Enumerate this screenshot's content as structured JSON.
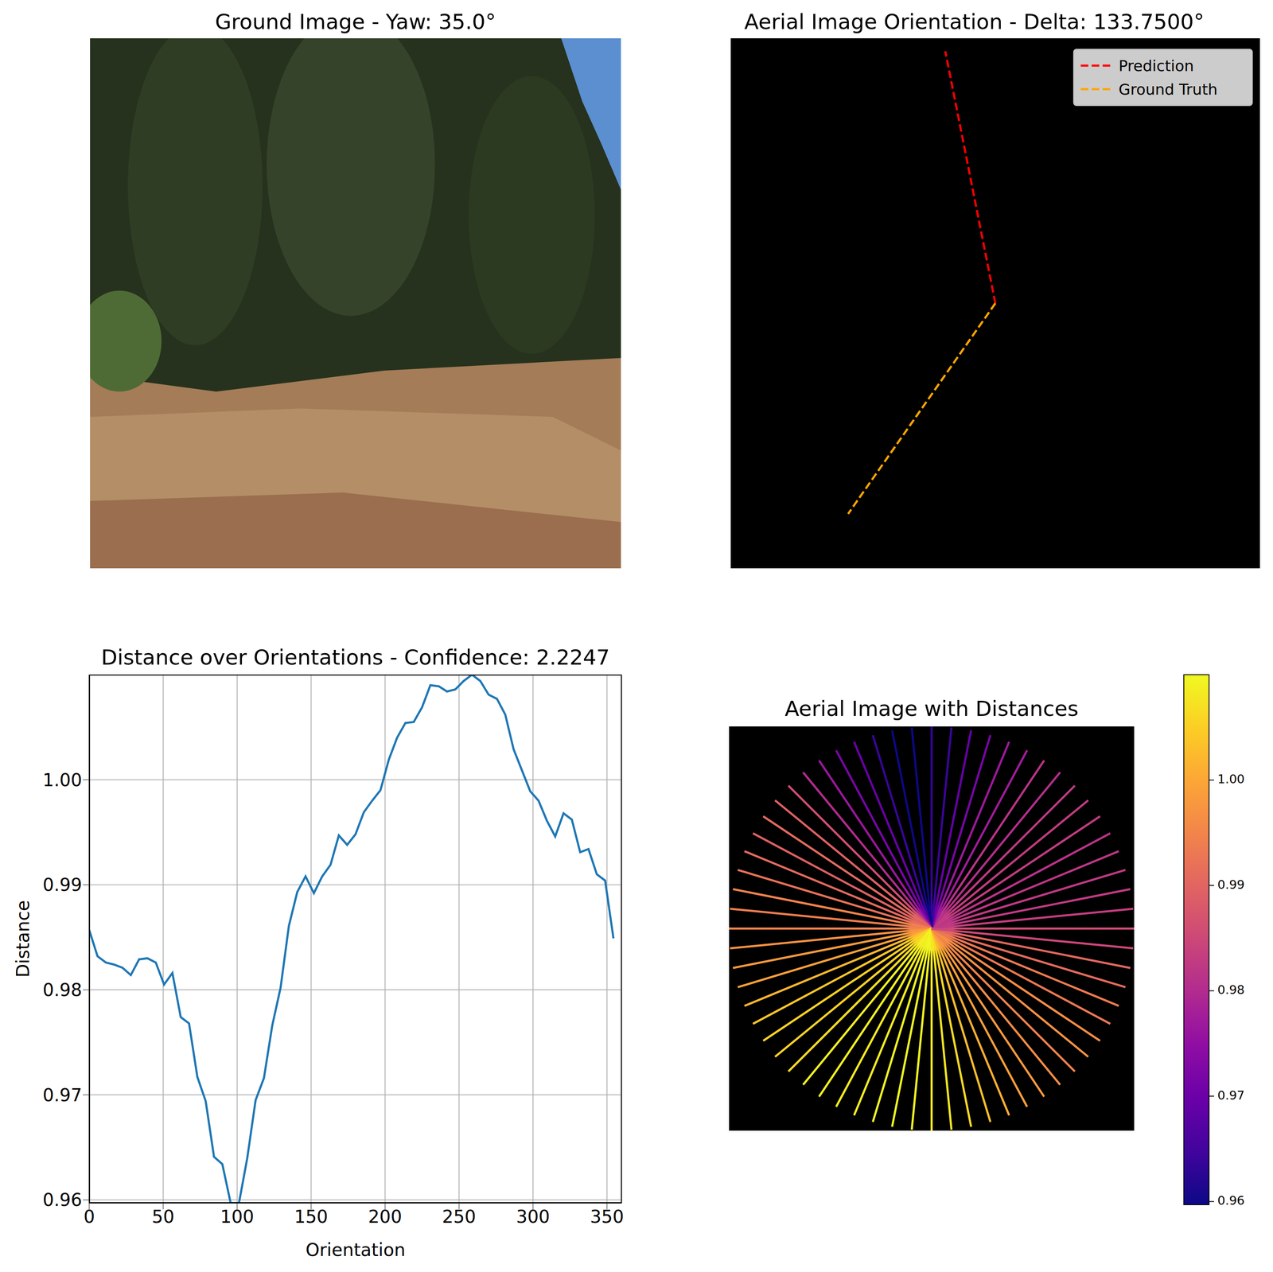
{
  "chart_data": [
    {
      "type": "image",
      "title": "Ground Image - Yaw: 35.0°"
    },
    {
      "type": "orientation",
      "title": "Aerial Image Orientation - Delta: 133.7500°",
      "legend": "upper right",
      "tick_labels": false,
      "series": [
        {
          "name": "Prediction",
          "color": "#ff0000",
          "line_style": "dashed",
          "angle": 101.25
        },
        {
          "name": "Ground Truth",
          "color": "#ffa500",
          "line_style": "dashed",
          "angle": 235
        }
      ]
    },
    {
      "type": "line",
      "title": "Distance over Orientations - Confidence: 2.2247",
      "x_label": "Orientation",
      "y_label": "Distance",
      "color": "#1f77b4",
      "grid": true,
      "x": [
        0,
        5.625,
        11.25,
        16.875,
        22.5,
        28.125,
        33.75,
        39.375,
        45,
        50.625,
        56.25,
        61.875,
        67.5,
        73.125,
        78.75,
        84.375,
        90,
        95.625,
        101.25,
        106.875,
        112.5,
        118.125,
        123.75,
        129.375,
        135,
        140.625,
        146.25,
        151.875,
        157.5,
        163.125,
        168.75,
        174.375,
        180,
        185.625,
        191.25,
        196.875,
        202.5,
        208.125,
        213.75,
        219.375,
        225,
        230.625,
        236.25,
        241.875,
        247.5,
        253.125,
        258.75,
        264.375,
        270,
        275.625,
        281.25,
        286.875,
        292.5,
        298.125,
        303.75,
        309.375,
        315,
        320.625,
        326.25,
        331.875,
        337.5,
        343.125,
        348.75,
        354.375
      ],
      "values": [
        0.9857,
        0.9832,
        0.9826,
        0.9824,
        0.9821,
        0.9814,
        0.9829,
        0.983,
        0.9826,
        0.9805,
        0.9816,
        0.9774,
        0.9768,
        0.9717,
        0.9694,
        0.9641,
        0.9634,
        0.9597,
        0.9597,
        0.964,
        0.9695,
        0.9716,
        0.9766,
        0.9802,
        0.9861,
        0.9893,
        0.9908,
        0.9892,
        0.9908,
        0.9919,
        0.9947,
        0.9938,
        0.9948,
        0.9969,
        0.998,
        0.999,
        1.0019,
        1.004,
        1.0054,
        1.0055,
        1.0069,
        1.009,
        1.0089,
        1.0084,
        1.0086,
        1.0094,
        1.01,
        1.0094,
        1.0081,
        1.0077,
        1.0062,
        1.0029,
        1.0009,
        0.9989,
        0.998,
        0.9961,
        0.9946,
        0.9968,
        0.9962,
        0.9931,
        0.9934,
        0.991,
        0.9904,
        0.9849
      ],
      "xlim": [
        0,
        360
      ],
      "xticks": [
        0,
        50,
        100,
        150,
        200,
        250,
        300,
        350
      ],
      "ylim": [
        0.9597,
        1.01
      ],
      "yticks": [
        0.96,
        0.97,
        0.98,
        0.99,
        {
          "value": 1,
          "label": "1.00"
        }
      ]
    },
    {
      "type": "radial",
      "title": "Aerial Image with Distances",
      "tick_labels": false,
      "x": [
        0,
        5.625,
        11.25,
        16.875,
        22.5,
        28.125,
        33.75,
        39.375,
        45,
        50.625,
        56.25,
        61.875,
        67.5,
        73.125,
        78.75,
        84.375,
        90,
        95.625,
        101.25,
        106.875,
        112.5,
        118.125,
        123.75,
        129.375,
        135,
        140.625,
        146.25,
        151.875,
        157.5,
        163.125,
        168.75,
        174.375,
        180,
        185.625,
        191.25,
        196.875,
        202.5,
        208.125,
        213.75,
        219.375,
        225,
        230.625,
        236.25,
        241.875,
        247.5,
        253.125,
        258.75,
        264.375,
        270,
        275.625,
        281.25,
        286.875,
        292.5,
        298.125,
        303.75,
        309.375,
        315,
        320.625,
        326.25,
        331.875,
        337.5,
        343.125,
        348.75,
        354.375
      ],
      "values": [
        0.9857,
        0.9832,
        0.9826,
        0.9824,
        0.9821,
        0.9814,
        0.9829,
        0.983,
        0.9826,
        0.9805,
        0.9816,
        0.9774,
        0.9768,
        0.9717,
        0.9694,
        0.9641,
        0.9634,
        0.9597,
        0.9597,
        0.964,
        0.9695,
        0.9716,
        0.9766,
        0.9802,
        0.9861,
        0.9893,
        0.9908,
        0.9892,
        0.9908,
        0.9919,
        0.9947,
        0.9938,
        0.9948,
        0.9969,
        0.998,
        0.999,
        1.0019,
        1.004,
        1.0054,
        1.0055,
        1.0069,
        1.009,
        1.0089,
        1.0084,
        1.0086,
        1.0094,
        1.01,
        1.0094,
        1.0081,
        1.0077,
        1.0062,
        1.0029,
        1.0009,
        0.9989,
        0.998,
        0.9961,
        0.9946,
        0.9968,
        0.9962,
        0.9931,
        0.9934,
        0.991,
        0.9904,
        0.9849
      ],
      "colorbar": {
        "range": [
          0.9597,
          1.01
        ],
        "ticks": [
          0.96,
          0.97,
          0.98,
          0.99,
          {
            "value": 1,
            "label": "1.00"
          }
        ]
      }
    }
  ]
}
